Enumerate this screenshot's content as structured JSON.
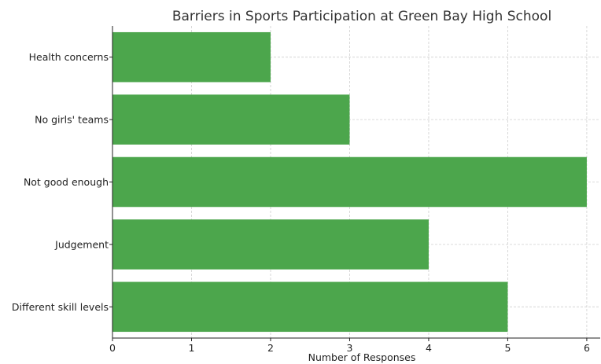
{
  "chart_data": {
    "type": "bar",
    "orientation": "horizontal",
    "title": "Barriers in Sports Participation at Green Bay High School",
    "xlabel": "Number of Responses",
    "ylabel": "",
    "categories": [
      "Different skill levels",
      "Judgement",
      "Not good enough",
      "No girls' teams",
      "Health concerns"
    ],
    "values": [
      5,
      4,
      6,
      3,
      2
    ],
    "xlim": [
      0,
      6.17
    ],
    "xticks": [
      0,
      1,
      2,
      3,
      4,
      5,
      6
    ],
    "grid": true,
    "bar_color": "#4ca64c"
  }
}
